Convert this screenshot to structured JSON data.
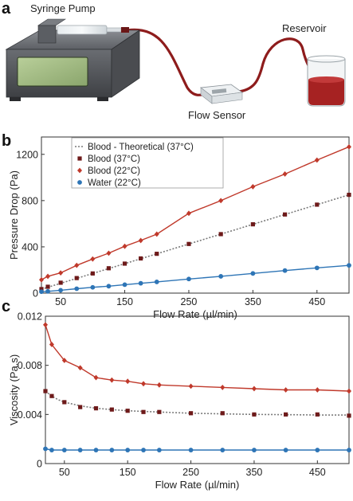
{
  "panel_a": {
    "letter": "a",
    "labels": {
      "syringe_pump": "Syringe Pump",
      "reservoir": "Reservoir",
      "flow_sensor": "Flow Sensor"
    }
  },
  "chart_data": [
    {
      "panel": "b",
      "type": "line",
      "title": "",
      "xlabel": "Flow Rate (µl/min)",
      "ylabel": "Pressure Drop (Pa)",
      "xlim": [
        20,
        500
      ],
      "ylim": [
        0,
        1350
      ],
      "xticks": [
        50,
        150,
        250,
        350,
        450
      ],
      "yticks": [
        0,
        400,
        800,
        1200
      ],
      "legend_position": "top-left",
      "legend_order": [
        0,
        1,
        2,
        3
      ],
      "series": [
        {
          "name": "Blood - Theoretical (37°C)",
          "style": "dotted-line",
          "color": "#7a7a7a",
          "x": [
            20,
            500
          ],
          "y": [
            34,
            850
          ]
        },
        {
          "name": "Blood (37°C)",
          "style": "square-markers",
          "color": "#6e1a1a",
          "x": [
            20,
            30,
            50,
            75,
            100,
            125,
            150,
            175,
            200,
            250,
            300,
            350,
            400,
            450,
            500
          ],
          "y": [
            35,
            55,
            90,
            130,
            170,
            215,
            255,
            300,
            340,
            425,
            510,
            595,
            680,
            765,
            850
          ]
        },
        {
          "name": "Blood (22°C)",
          "style": "diamond-markers-line",
          "color": "#c0392b",
          "x": [
            20,
            30,
            50,
            75,
            100,
            125,
            150,
            175,
            200,
            250,
            300,
            350,
            400,
            450,
            500
          ],
          "y": [
            115,
            145,
            175,
            240,
            295,
            345,
            405,
            455,
            510,
            690,
            800,
            920,
            1030,
            1150,
            1265
          ]
        },
        {
          "name": "Water (22°C)",
          "style": "circle-markers-line",
          "color": "#2e75b6",
          "x": [
            20,
            30,
            50,
            75,
            100,
            125,
            150,
            175,
            200,
            250,
            300,
            350,
            400,
            450,
            500
          ],
          "y": [
            12,
            15,
            25,
            38,
            50,
            60,
            73,
            85,
            97,
            122,
            145,
            170,
            195,
            218,
            240
          ]
        }
      ]
    },
    {
      "panel": "c",
      "type": "line",
      "title": "",
      "xlabel": "Flow Rate (µl/min)",
      "ylabel": "Viscosity (Pa.s)",
      "xlim": [
        20,
        500
      ],
      "ylim": [
        0,
        0.012
      ],
      "xticks": [
        50,
        150,
        250,
        350,
        450
      ],
      "yticks": [
        0,
        0.004,
        0.008,
        0.012
      ],
      "ytick_labels": [
        "0",
        "0.004",
        "0.008",
        "0.012"
      ],
      "series": [
        {
          "name": "Blood - Theoretical (37°C)",
          "style": "dotted-line",
          "color": "#7a7a7a",
          "x": [
            20,
            30,
            40,
            50,
            75,
            100,
            125,
            150,
            200,
            250,
            300,
            350,
            400,
            450,
            500
          ],
          "y": [
            0.0059,
            0.0055,
            0.0052,
            0.005,
            0.0047,
            0.0045,
            0.0044,
            0.0043,
            0.0042,
            0.0041,
            0.00405,
            0.004,
            0.00398,
            0.00396,
            0.00395
          ]
        },
        {
          "name": "Blood (37°C)",
          "style": "square-markers",
          "color": "#6e1a1a",
          "x": [
            20,
            30,
            50,
            75,
            100,
            125,
            150,
            175,
            200,
            250,
            300,
            350,
            400,
            450,
            500
          ],
          "y": [
            0.0059,
            0.0055,
            0.005,
            0.0046,
            0.0045,
            0.0044,
            0.0043,
            0.0042,
            0.0042,
            0.0041,
            0.0041,
            0.004,
            0.004,
            0.004,
            0.0039
          ]
        },
        {
          "name": "Blood (22°C)",
          "style": "diamond-markers-line",
          "color": "#c0392b",
          "x": [
            20,
            30,
            50,
            75,
            100,
            125,
            150,
            175,
            200,
            250,
            300,
            350,
            400,
            450,
            500
          ],
          "y": [
            0.0113,
            0.0097,
            0.0084,
            0.0078,
            0.007,
            0.0068,
            0.0067,
            0.0065,
            0.0064,
            0.0063,
            0.0062,
            0.0061,
            0.006,
            0.006,
            0.0059
          ]
        },
        {
          "name": "Water (22°C)",
          "style": "circle-markers-line",
          "color": "#2e75b6",
          "x": [
            20,
            30,
            50,
            75,
            100,
            125,
            150,
            175,
            200,
            250,
            300,
            350,
            400,
            450,
            500
          ],
          "y": [
            0.0012,
            0.0011,
            0.0011,
            0.0011,
            0.0011,
            0.0011,
            0.0011,
            0.0011,
            0.0011,
            0.0011,
            0.0011,
            0.0011,
            0.0011,
            0.0011,
            0.0011
          ]
        }
      ]
    }
  ]
}
